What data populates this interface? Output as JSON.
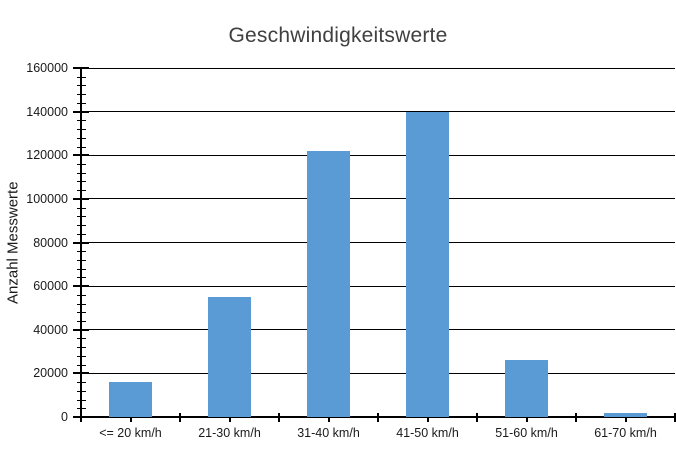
{
  "chart_data": {
    "type": "bar",
    "title": "Geschwindigkeitswerte",
    "xlabel": "",
    "ylabel": "Anzahl Messwerte",
    "categories": [
      "<= 20 km/h",
      "21-30 km/h",
      "31-40 km/h",
      "41-50 km/h",
      "51-60 km/h",
      "61-70 km/h"
    ],
    "values": [
      16000,
      55000,
      122000,
      140000,
      26000,
      2000
    ],
    "ylim": [
      0,
      160000
    ],
    "ytick_step": 20000,
    "ytick_labels": [
      "0",
      "20000",
      "40000",
      "60000",
      "80000",
      "100000",
      "120000",
      "140000",
      "160000"
    ],
    "y_minor_tick_step": 4000,
    "grid": true,
    "legend": false,
    "bar_color": "#5B9BD5",
    "gridline_color": "#000000",
    "axis_color": "#000000",
    "title_color": "#404040",
    "text_color": "#1a1a1a"
  }
}
